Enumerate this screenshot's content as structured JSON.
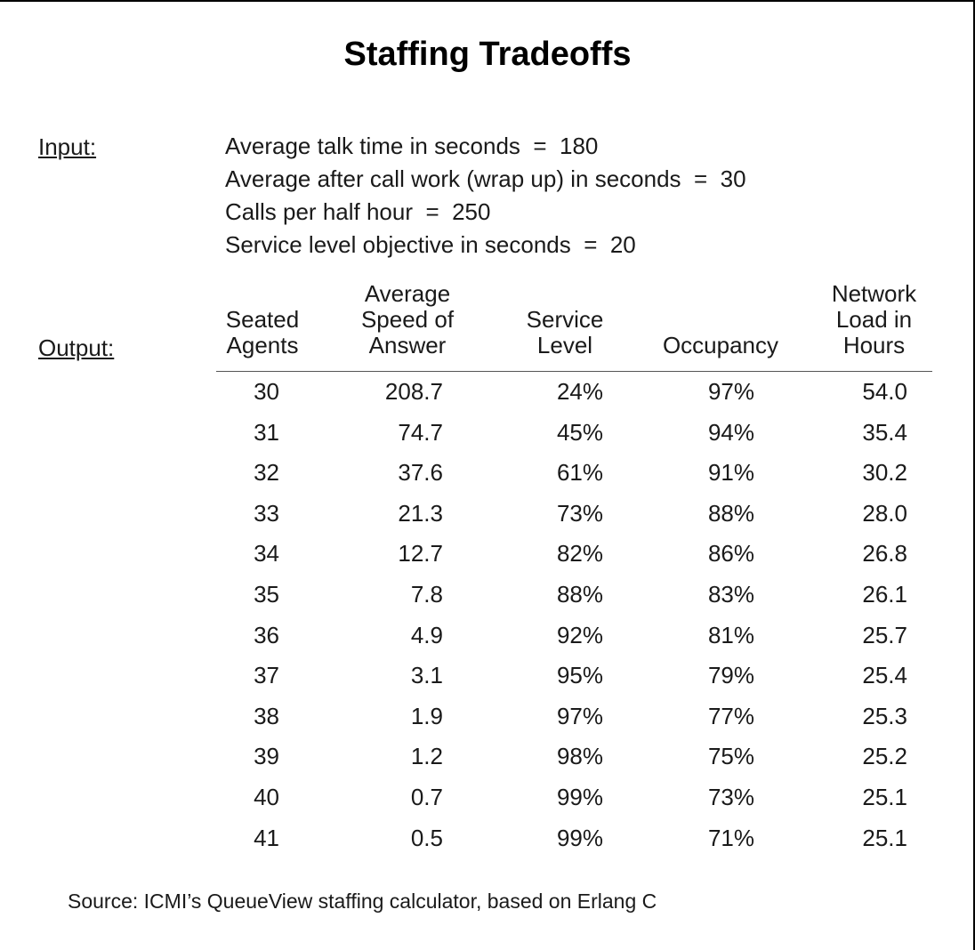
{
  "title": "Staffing Tradeoffs",
  "input_label": "Input:",
  "output_label": "Output:",
  "inputs": [
    "Average talk time in seconds  =  180",
    "Average after call work (wrap up) in seconds  =  30",
    "Calls per half hour  =  250",
    "Service level objective in seconds  =  20"
  ],
  "headers": [
    [
      "Seated",
      "Agents"
    ],
    [
      "Average",
      "Speed of",
      "Answer"
    ],
    [
      "Service",
      "Level"
    ],
    [
      "Occupancy"
    ],
    [
      "Network",
      "Load in",
      "Hours"
    ]
  ],
  "rows": [
    [
      "30",
      "208.7",
      "24%",
      "97%",
      "54.0"
    ],
    [
      "31",
      "74.7",
      "45%",
      "94%",
      "35.4"
    ],
    [
      "32",
      "37.6",
      "61%",
      "91%",
      "30.2"
    ],
    [
      "33",
      "21.3",
      "73%",
      "88%",
      "28.0"
    ],
    [
      "34",
      "12.7",
      "82%",
      "86%",
      "26.8"
    ],
    [
      "35",
      "7.8",
      "88%",
      "83%",
      "26.1"
    ],
    [
      "36",
      "4.9",
      "92%",
      "81%",
      "25.7"
    ],
    [
      "37",
      "3.1",
      "95%",
      "79%",
      "25.4"
    ],
    [
      "38",
      "1.9",
      "97%",
      "77%",
      "25.3"
    ],
    [
      "39",
      "1.2",
      "98%",
      "75%",
      "25.2"
    ],
    [
      "40",
      "0.7",
      "99%",
      "73%",
      "25.1"
    ],
    [
      "41",
      "0.5",
      "99%",
      "71%",
      "25.1"
    ]
  ],
  "source": "Source: ICMI’s QueueView staffing calculator, based on Erlang C"
}
